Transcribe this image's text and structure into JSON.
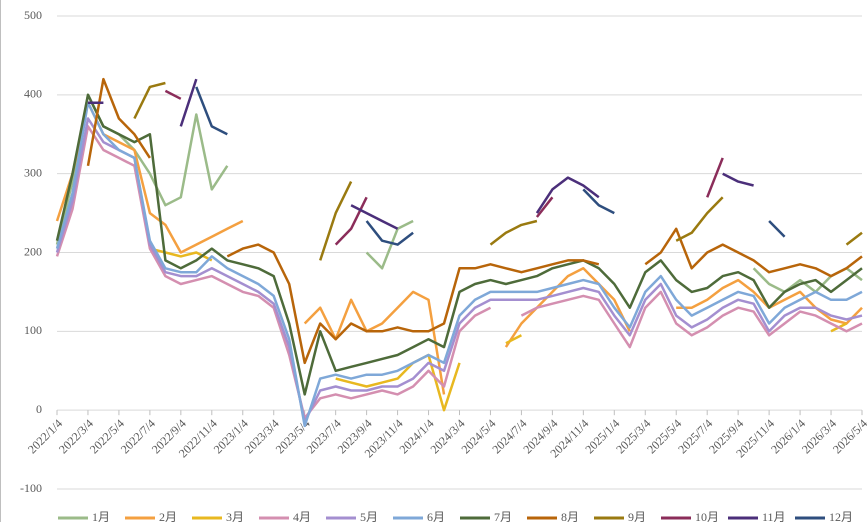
{
  "chart_data": {
    "type": "line",
    "categories": [
      "2022/1/4",
      null,
      "2022/3/4",
      null,
      "2022/5/4",
      null,
      "2022/7/4",
      null,
      "2022/9/4",
      null,
      "2022/11/4",
      null,
      "2023/1/4",
      null,
      "2023/3/4",
      null,
      "2023/5/4",
      null,
      "2023/7/4",
      null,
      "2023/9/4",
      null,
      "2023/11/4",
      null,
      "2024/1/4",
      null,
      "2024/3/4",
      null,
      "2024/5/4",
      null,
      "2024/7/4",
      null,
      "2024/9/4",
      null,
      "2024/11/4",
      null,
      "2025/1/4",
      null,
      "2025/3/4",
      null,
      "2025/5/4",
      null,
      "2025/7/4",
      null,
      "2025/9/4",
      null,
      "2025/11/4",
      null,
      "2026/1/4",
      null,
      "2026/3/4",
      null,
      "2026/5/4"
    ],
    "ylim": [
      -100,
      500
    ],
    "yticks": [
      -100,
      0,
      100,
      200,
      300,
      400,
      500
    ],
    "grid": true,
    "series": [
      {
        "name": "1月",
        "color": "#9bbb89",
        "values": [
          210,
          290,
          400,
          360,
          350,
          330,
          300,
          260,
          270,
          375,
          280,
          310,
          null,
          null,
          null,
          null,
          null,
          null,
          null,
          null,
          200,
          180,
          230,
          240,
          null,
          null,
          null,
          null,
          null,
          null,
          null,
          null,
          null,
          null,
          null,
          null,
          null,
          null,
          null,
          null,
          null,
          null,
          null,
          null,
          null,
          180,
          160,
          150,
          165,
          150,
          170,
          180,
          165
        ]
      },
      {
        "name": "2月",
        "color": "#f4a040",
        "values": [
          240,
          300,
          390,
          350,
          340,
          330,
          250,
          235,
          200,
          210,
          220,
          230,
          240,
          null,
          null,
          null,
          110,
          130,
          90,
          140,
          100,
          110,
          130,
          150,
          140,
          20,
          null,
          null,
          null,
          80,
          110,
          130,
          150,
          170,
          180,
          160,
          140,
          100,
          null,
          null,
          130,
          130,
          140,
          155,
          165,
          150,
          130,
          140,
          150,
          130,
          115,
          110,
          130
        ]
      },
      {
        "name": "3月",
        "color": "#e8b820",
        "values": [
          null,
          null,
          null,
          null,
          null,
          null,
          205,
          200,
          195,
          200,
          190,
          null,
          null,
          null,
          null,
          null,
          null,
          null,
          40,
          35,
          30,
          35,
          40,
          60,
          70,
          0,
          60,
          null,
          null,
          85,
          95,
          null,
          null,
          null,
          null,
          null,
          null,
          90,
          null,
          null,
          105,
          null,
          null,
          null,
          null,
          null,
          null,
          null,
          null,
          null,
          100,
          110,
          null
        ]
      },
      {
        "name": "4月",
        "color": "#d48fb0",
        "values": [
          195,
          255,
          360,
          330,
          320,
          310,
          205,
          170,
          160,
          165,
          170,
          160,
          150,
          145,
          130,
          70,
          -10,
          15,
          20,
          15,
          20,
          25,
          20,
          30,
          50,
          30,
          100,
          120,
          130,
          null,
          120,
          130,
          135,
          140,
          145,
          140,
          110,
          80,
          130,
          150,
          110,
          95,
          105,
          120,
          130,
          125,
          95,
          110,
          125,
          120,
          110,
          100,
          110
        ]
      },
      {
        "name": "5月",
        "color": "#a48fd0",
        "values": [
          200,
          265,
          370,
          340,
          330,
          320,
          210,
          175,
          170,
          170,
          180,
          170,
          160,
          150,
          135,
          80,
          -15,
          25,
          30,
          25,
          25,
          30,
          30,
          40,
          60,
          50,
          110,
          130,
          140,
          140,
          140,
          140,
          145,
          150,
          155,
          150,
          120,
          95,
          140,
          160,
          120,
          105,
          115,
          130,
          140,
          135,
          100,
          120,
          130,
          130,
          120,
          115,
          120
        ]
      },
      {
        "name": "6月",
        "color": "#7fa8d8",
        "values": [
          205,
          275,
          390,
          350,
          330,
          320,
          215,
          180,
          175,
          175,
          195,
          180,
          170,
          160,
          145,
          90,
          -20,
          40,
          45,
          40,
          45,
          45,
          50,
          60,
          70,
          60,
          120,
          140,
          150,
          150,
          150,
          150,
          155,
          160,
          165,
          160,
          130,
          105,
          150,
          170,
          140,
          120,
          130,
          140,
          150,
          145,
          110,
          130,
          140,
          150,
          140,
          140,
          150
        ]
      },
      {
        "name": "7月",
        "color": "#4e6b3a",
        "values": [
          215,
          300,
          400,
          360,
          350,
          340,
          350,
          190,
          180,
          190,
          205,
          190,
          185,
          180,
          170,
          110,
          20,
          100,
          50,
          55,
          60,
          65,
          70,
          80,
          90,
          80,
          150,
          160,
          165,
          160,
          165,
          170,
          180,
          185,
          190,
          180,
          160,
          130,
          175,
          190,
          165,
          150,
          155,
          170,
          175,
          165,
          130,
          150,
          160,
          165,
          150,
          165,
          180
        ]
      },
      {
        "name": "8月",
        "color": "#b8650a",
        "values": [
          null,
          null,
          310,
          420,
          370,
          350,
          320,
          null,
          null,
          null,
          null,
          195,
          205,
          210,
          200,
          160,
          60,
          110,
          90,
          110,
          100,
          100,
          105,
          100,
          100,
          110,
          180,
          180,
          185,
          180,
          175,
          180,
          185,
          190,
          190,
          185,
          null,
          null,
          185,
          200,
          230,
          180,
          200,
          210,
          200,
          190,
          175,
          180,
          185,
          180,
          170,
          180,
          195
        ]
      },
      {
        "name": "9月",
        "color": "#9a7a10",
        "values": [
          null,
          null,
          null,
          null,
          null,
          370,
          410,
          415,
          null,
          null,
          null,
          null,
          null,
          null,
          null,
          null,
          null,
          190,
          250,
          290,
          null,
          null,
          null,
          null,
          null,
          null,
          null,
          null,
          210,
          225,
          235,
          240,
          null,
          null,
          null,
          null,
          null,
          null,
          null,
          null,
          215,
          225,
          250,
          270,
          null,
          null,
          null,
          null,
          null,
          null,
          null,
          210,
          225
        ]
      },
      {
        "name": "10月",
        "color": "#8b2d5a",
        "values": [
          null,
          null,
          null,
          null,
          null,
          null,
          null,
          405,
          395,
          null,
          null,
          null,
          null,
          null,
          null,
          null,
          null,
          null,
          210,
          230,
          270,
          null,
          null,
          null,
          null,
          null,
          null,
          null,
          null,
          null,
          null,
          245,
          270,
          null,
          null,
          null,
          null,
          null,
          null,
          null,
          null,
          null,
          270,
          320,
          null,
          null,
          null,
          null,
          null,
          null,
          null,
          null,
          null
        ]
      },
      {
        "name": "11月",
        "color": "#4b2f7a",
        "values": [
          null,
          null,
          390,
          390,
          null,
          null,
          null,
          null,
          360,
          420,
          null,
          null,
          null,
          null,
          null,
          null,
          null,
          null,
          null,
          260,
          250,
          240,
          230,
          null,
          null,
          null,
          null,
          null,
          null,
          null,
          null,
          250,
          280,
          295,
          285,
          270,
          null,
          null,
          null,
          null,
          null,
          null,
          null,
          300,
          290,
          285,
          null,
          null,
          null,
          null,
          null,
          null,
          null
        ]
      },
      {
        "name": "12月",
        "color": "#2e4e7e",
        "values": [
          null,
          null,
          null,
          null,
          null,
          null,
          null,
          null,
          null,
          410,
          360,
          350,
          null,
          null,
          null,
          null,
          null,
          null,
          null,
          null,
          240,
          215,
          210,
          225,
          null,
          null,
          null,
          null,
          null,
          null,
          null,
          null,
          null,
          null,
          280,
          260,
          250,
          null,
          null,
          null,
          null,
          null,
          null,
          null,
          null,
          null,
          240,
          220,
          null,
          null,
          null,
          null,
          null
        ]
      }
    ]
  }
}
